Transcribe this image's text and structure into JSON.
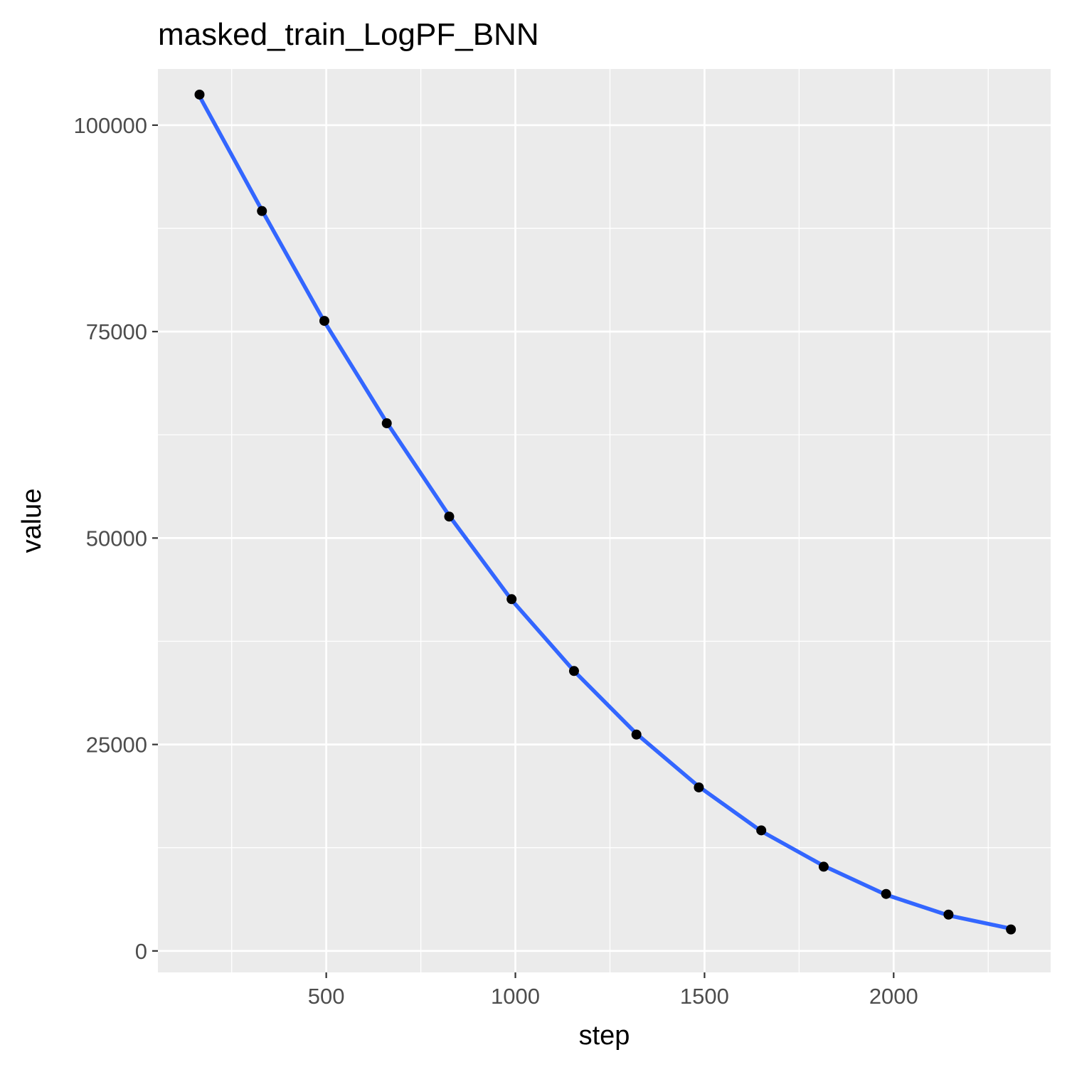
{
  "chart_data": {
    "type": "line",
    "title": "masked_train_LogPF_BNN",
    "xlabel": "step",
    "ylabel": "value",
    "xlim": [
      55,
      2415
    ],
    "ylim": [
      -2600,
      106800
    ],
    "x_ticks": [
      500,
      1000,
      1500,
      2000
    ],
    "x_tick_labels": [
      "500",
      "1000",
      "1500",
      "2000"
    ],
    "x_minor_ticks": [
      250,
      750,
      1250,
      1750,
      2250
    ],
    "y_ticks": [
      0,
      25000,
      50000,
      75000,
      100000
    ],
    "y_tick_labels": [
      "0",
      "25000",
      "50000",
      "75000",
      "100000"
    ],
    "y_minor_ticks": [
      12500,
      37500,
      62500,
      87500
    ],
    "grid": true,
    "legend": "none",
    "series": [
      {
        "kind": "points",
        "color": "#000000",
        "x": [
          165,
          330,
          495,
          660,
          825,
          990,
          1155,
          1320,
          1485,
          1650,
          1815,
          1980,
          2145,
          2310
        ],
        "y": [
          103700,
          89600,
          76300,
          63900,
          52600,
          42600,
          33900,
          26200,
          19800,
          14600,
          10200,
          6900,
          4400,
          2600
        ]
      },
      {
        "kind": "smooth",
        "color": "#3366ff",
        "x": [
          165,
          330,
          495,
          660,
          825,
          990,
          1155,
          1320,
          1485,
          1650,
          1815,
          1980,
          2145,
          2310
        ],
        "y": [
          103500,
          89700,
          76200,
          64000,
          52700,
          42500,
          33900,
          26300,
          19900,
          14500,
          10300,
          6800,
          4300,
          2700
        ]
      }
    ],
    "colors": {
      "panel": "#ebebeb",
      "grid": "#ffffff",
      "tick_label": "#4d4d4d",
      "tick_mark": "#333333",
      "points": "#000000",
      "smooth": "#3366ff"
    }
  }
}
